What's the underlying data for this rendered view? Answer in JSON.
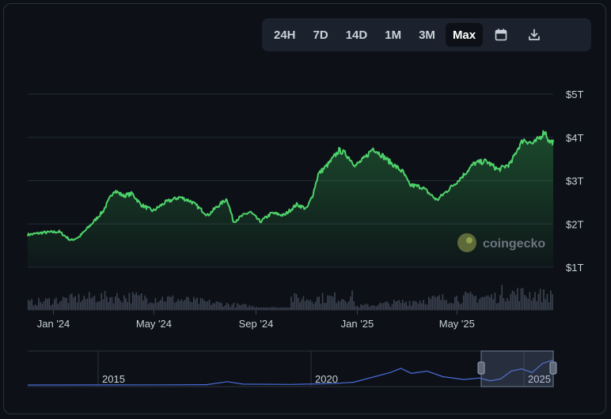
{
  "toolbar": {
    "ranges": [
      "24H",
      "7D",
      "14D",
      "1M",
      "3M",
      "Max"
    ],
    "active_range": "Max",
    "icons": [
      "calendar-icon",
      "download-icon"
    ]
  },
  "watermark": {
    "text": "coingecko"
  },
  "colors": {
    "line": "#4ed36a",
    "background": "#0d1117",
    "grid": "#232a35",
    "text": "#c9d1d9",
    "volume": "#3b4350",
    "navigator_line": "#4a6bd8"
  },
  "chart_data": {
    "type": "area",
    "y_ticks": [
      "$1T",
      "$2T",
      "$3T",
      "$4T",
      "$5T"
    ],
    "y_tick_values": [
      1,
      2,
      3,
      4,
      5
    ],
    "x_ticks": [
      "Jan '24",
      "May '24",
      "Sep '24",
      "Jan '25",
      "May '25"
    ],
    "x_tick_dates": [
      "2024-01-01",
      "2024-05-01",
      "2024-09-01",
      "2025-01-01",
      "2025-05-01"
    ],
    "x_range": [
      "2023-12-01",
      "2025-08-25"
    ],
    "ylim": [
      0.6,
      5.2
    ],
    "grid": true,
    "series": [
      {
        "unit": "USD trillions",
        "points": [
          [
            "2023-12-01",
            1.75
          ],
          [
            "2023-12-20",
            1.8
          ],
          [
            "2024-01-08",
            1.82
          ],
          [
            "2024-01-22",
            1.62
          ],
          [
            "2024-02-01",
            1.7
          ],
          [
            "2024-02-15",
            1.98
          ],
          [
            "2024-03-01",
            2.3
          ],
          [
            "2024-03-14",
            2.78
          ],
          [
            "2024-03-25",
            2.65
          ],
          [
            "2024-04-05",
            2.7
          ],
          [
            "2024-04-15",
            2.45
          ],
          [
            "2024-04-30",
            2.3
          ],
          [
            "2024-05-15",
            2.5
          ],
          [
            "2024-06-01",
            2.62
          ],
          [
            "2024-06-15",
            2.52
          ],
          [
            "2024-07-05",
            2.2
          ],
          [
            "2024-07-15",
            2.38
          ],
          [
            "2024-07-28",
            2.58
          ],
          [
            "2024-08-05",
            2.05
          ],
          [
            "2024-08-15",
            2.18
          ],
          [
            "2024-08-25",
            2.28
          ],
          [
            "2024-09-06",
            2.05
          ],
          [
            "2024-09-20",
            2.25
          ],
          [
            "2024-10-05",
            2.2
          ],
          [
            "2024-10-20",
            2.45
          ],
          [
            "2024-11-01",
            2.35
          ],
          [
            "2024-11-08",
            2.65
          ],
          [
            "2024-11-15",
            3.15
          ],
          [
            "2024-11-28",
            3.4
          ],
          [
            "2024-12-10",
            3.7
          ],
          [
            "2024-12-18",
            3.62
          ],
          [
            "2024-12-30",
            3.35
          ],
          [
            "2025-01-10",
            3.52
          ],
          [
            "2025-01-20",
            3.75
          ],
          [
            "2025-01-31",
            3.58
          ],
          [
            "2025-02-10",
            3.42
          ],
          [
            "2025-02-25",
            3.2
          ],
          [
            "2025-03-05",
            2.9
          ],
          [
            "2025-03-20",
            2.85
          ],
          [
            "2025-04-07",
            2.55
          ],
          [
            "2025-04-20",
            2.78
          ],
          [
            "2025-05-05",
            3.05
          ],
          [
            "2025-05-22",
            3.4
          ],
          [
            "2025-06-05",
            3.45
          ],
          [
            "2025-06-20",
            3.25
          ],
          [
            "2025-07-05",
            3.4
          ],
          [
            "2025-07-12",
            3.7
          ],
          [
            "2025-07-20",
            3.95
          ],
          [
            "2025-08-01",
            3.85
          ],
          [
            "2025-08-10",
            4.02
          ],
          [
            "2025-08-15",
            4.15
          ],
          [
            "2025-08-20",
            3.9
          ],
          [
            "2025-08-25",
            3.9
          ]
        ]
      }
    ],
    "navigator": {
      "x_labels": [
        "2015",
        "2020",
        "2025"
      ],
      "selected_range": [
        "2023-12-01",
        "2025-08-25"
      ]
    }
  }
}
